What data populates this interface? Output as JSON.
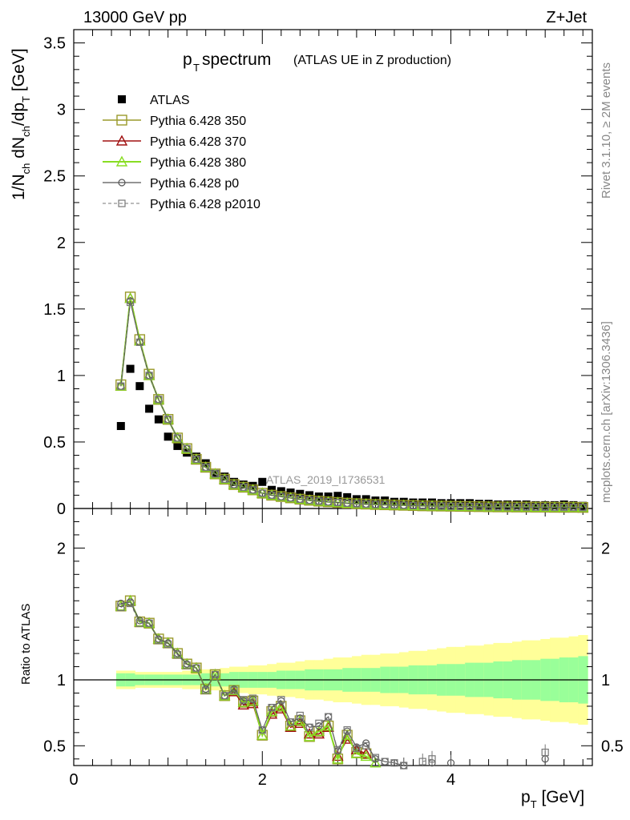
{
  "header": {
    "left": "13000 GeV pp",
    "right": "Z+Jet"
  },
  "side": {
    "rivet": "Rivet 3.1.10, ≥ 2M events",
    "mcplots": "mcplots.cern.ch [arXiv:1306.3436]"
  },
  "title": {
    "main": "p",
    "main_sub": "T",
    "main_rest": " spectrum",
    "paren": "(ATLAS UE in Z production)"
  },
  "watermark": "ATLAS_2019_I1736531",
  "colors": {
    "atlas": "#000000",
    "p350": "#9a9a2a",
    "p370": "#a01010",
    "p380": "#88dd22",
    "p0": "#555555",
    "p2010": "#777777",
    "band_inner": "#99ff99",
    "band_outer": "#ffff99"
  },
  "chart_data": [
    {
      "type": "scatter",
      "panel": "main",
      "xlabel": "p_T [GeV]",
      "ylabel": "1/N_ch dN_ch/dp_T [GeV]",
      "xlim": [
        0,
        5.5
      ],
      "ylim": [
        0,
        3.6
      ],
      "yticks": [
        "0",
        "0.5",
        "1",
        "1.5",
        "2",
        "2.5",
        "3",
        "3.5"
      ],
      "x": [
        0.5,
        0.6,
        0.7,
        0.8,
        0.9,
        1.0,
        1.1,
        1.2,
        1.3,
        1.4,
        1.5,
        1.6,
        1.7,
        1.8,
        1.9,
        2.0,
        2.1,
        2.2,
        2.3,
        2.4,
        2.5,
        2.6,
        2.7,
        2.8,
        2.9,
        3.0,
        3.1,
        3.2,
        3.3,
        3.4,
        3.5,
        3.6,
        3.7,
        3.8,
        3.9,
        4.0,
        4.1,
        4.2,
        4.3,
        4.4,
        4.5,
        4.6,
        4.7,
        4.8,
        4.9,
        5.0,
        5.1,
        5.2,
        5.3,
        5.4
      ],
      "series": [
        {
          "name": "ATLAS",
          "values": [
            0.62,
            1.05,
            0.92,
            0.75,
            0.67,
            0.54,
            0.47,
            0.42,
            0.39,
            0.34,
            0.26,
            0.24,
            0.2,
            0.18,
            0.17,
            0.2,
            0.14,
            0.13,
            0.12,
            0.11,
            0.1,
            0.09,
            0.09,
            0.095,
            0.085,
            0.07,
            0.07,
            0.06,
            0.06,
            0.05,
            0.05,
            0.045,
            0.045,
            0.045,
            0.04,
            0.04,
            0.04,
            0.04,
            0.035,
            0.035,
            0.03,
            0.03,
            0.03,
            0.03,
            0.025,
            0.025,
            0.025,
            0.03,
            0.025,
            0.02
          ]
        },
        {
          "name": "Pythia 6.428 350",
          "values": [
            0.93,
            1.59,
            1.27,
            1.01,
            0.82,
            0.67,
            0.53,
            0.45,
            0.37,
            0.31,
            0.26,
            0.22,
            0.18,
            0.16,
            0.14,
            0.115,
            0.1,
            0.09,
            0.08,
            0.07,
            0.062,
            0.055,
            0.05,
            0.045,
            0.04,
            0.036,
            0.033,
            0.03,
            0.028,
            0.026,
            0.024,
            0.022,
            0.02,
            0.019,
            0.018,
            0.017,
            0.016,
            0.015,
            0.014,
            0.013,
            0.012,
            0.012,
            0.011,
            0.011,
            0.01,
            0.01,
            0.009,
            0.009,
            0.009,
            0.008
          ]
        },
        {
          "name": "Pythia 6.428 370",
          "values": [
            0.92,
            1.58,
            1.26,
            1.0,
            0.82,
            0.67,
            0.53,
            0.45,
            0.37,
            0.31,
            0.26,
            0.22,
            0.18,
            0.16,
            0.14,
            0.115,
            0.1,
            0.09,
            0.08,
            0.07,
            0.062,
            0.055,
            0.05,
            0.045,
            0.04,
            0.036,
            0.033,
            0.03,
            0.028,
            0.026,
            0.024,
            0.022,
            0.02,
            0.019,
            0.018,
            0.017,
            0.016,
            0.015,
            0.014,
            0.013,
            0.012,
            0.012,
            0.011,
            0.011,
            0.01,
            0.01,
            0.009,
            0.009,
            0.009,
            0.008
          ]
        },
        {
          "name": "Pythia 6.428 380",
          "values": [
            0.92,
            1.58,
            1.26,
            1.0,
            0.82,
            0.67,
            0.53,
            0.45,
            0.37,
            0.31,
            0.26,
            0.22,
            0.18,
            0.16,
            0.14,
            0.115,
            0.1,
            0.09,
            0.08,
            0.07,
            0.062,
            0.055,
            0.05,
            0.045,
            0.04,
            0.036,
            0.033,
            0.03,
            0.028,
            0.026,
            0.024,
            0.022,
            0.02,
            0.019,
            0.018,
            0.017,
            0.016,
            0.015,
            0.014,
            0.013,
            0.012,
            0.012,
            0.011,
            0.011,
            0.01,
            0.01,
            0.009,
            0.009,
            0.009,
            0.008
          ]
        },
        {
          "name": "Pythia 6.428 p0",
          "values": [
            0.92,
            1.56,
            1.25,
            1.0,
            0.82,
            0.67,
            0.53,
            0.45,
            0.37,
            0.31,
            0.26,
            0.22,
            0.18,
            0.16,
            0.14,
            0.115,
            0.1,
            0.09,
            0.08,
            0.07,
            0.062,
            0.055,
            0.05,
            0.045,
            0.04,
            0.036,
            0.033,
            0.03,
            0.028,
            0.026,
            0.024,
            0.022,
            0.02,
            0.019,
            0.018,
            0.017,
            0.016,
            0.015,
            0.014,
            0.013,
            0.012,
            0.012,
            0.011,
            0.011,
            0.01,
            0.01,
            0.009,
            0.009,
            0.009,
            0.008
          ]
        },
        {
          "name": "Pythia 6.428 p2010",
          "values": [
            0.92,
            1.55,
            1.25,
            1.0,
            0.82,
            0.67,
            0.53,
            0.45,
            0.37,
            0.31,
            0.26,
            0.22,
            0.18,
            0.16,
            0.14,
            0.115,
            0.1,
            0.09,
            0.08,
            0.07,
            0.062,
            0.055,
            0.05,
            0.045,
            0.04,
            0.036,
            0.033,
            0.03,
            0.028,
            0.026,
            0.024,
            0.022,
            0.02,
            0.019,
            0.018,
            0.017,
            0.016,
            0.015,
            0.014,
            0.013,
            0.012,
            0.012,
            0.011,
            0.011,
            0.01,
            0.01,
            0.009,
            0.009,
            0.009,
            0.008
          ]
        }
      ]
    },
    {
      "type": "line",
      "panel": "ratio",
      "ylabel": "Ratio to ATLAS",
      "xlabel": "p_T [GeV]",
      "xlim": [
        0,
        5.5
      ],
      "ylim": [
        0.35,
        2.3
      ],
      "yticks": [
        "0.5",
        "1",
        "2"
      ],
      "xticks": [
        "0",
        "2",
        "4"
      ],
      "x": [
        0.5,
        0.6,
        0.7,
        0.8,
        0.9,
        1.0,
        1.1,
        1.2,
        1.3,
        1.4,
        1.5,
        1.6,
        1.7,
        1.8,
        1.9,
        2.0,
        2.1,
        2.2,
        2.3,
        2.4,
        2.5,
        2.6,
        2.7,
        2.8,
        2.9,
        3.0,
        3.1,
        3.2,
        3.3,
        3.4,
        3.5,
        3.6,
        3.7,
        3.8,
        3.9,
        4.0,
        4.1,
        4.2,
        4.3,
        4.4,
        4.5,
        4.6,
        4.7,
        4.8,
        4.9,
        5.0,
        5.1,
        5.2,
        5.3,
        5.4
      ],
      "band_inner": [
        0.05,
        0.05,
        0.04,
        0.04,
        0.04,
        0.04,
        0.04,
        0.04,
        0.04,
        0.05,
        0.05,
        0.05,
        0.06,
        0.06,
        0.06,
        0.06,
        0.06,
        0.07,
        0.07,
        0.07,
        0.08,
        0.08,
        0.08,
        0.08,
        0.09,
        0.09,
        0.09,
        0.09,
        0.1,
        0.1,
        0.1,
        0.11,
        0.11,
        0.11,
        0.12,
        0.12,
        0.12,
        0.13,
        0.13,
        0.13,
        0.14,
        0.14,
        0.15,
        0.15,
        0.15,
        0.16,
        0.16,
        0.17,
        0.17,
        0.18
      ],
      "band_outer": [
        0.07,
        0.07,
        0.06,
        0.06,
        0.06,
        0.06,
        0.06,
        0.07,
        0.07,
        0.08,
        0.08,
        0.09,
        0.1,
        0.1,
        0.11,
        0.11,
        0.12,
        0.13,
        0.13,
        0.14,
        0.15,
        0.15,
        0.16,
        0.17,
        0.17,
        0.18,
        0.19,
        0.19,
        0.2,
        0.2,
        0.21,
        0.22,
        0.22,
        0.23,
        0.24,
        0.25,
        0.25,
        0.26,
        0.26,
        0.27,
        0.28,
        0.28,
        0.29,
        0.3,
        0.3,
        0.31,
        0.32,
        0.32,
        0.33,
        0.34
      ],
      "series": [
        {
          "name": "Pythia 6.428 350",
          "values": [
            1.56,
            1.6,
            1.44,
            1.43,
            1.31,
            1.28,
            1.2,
            1.12,
            1.09,
            0.93,
            1.04,
            0.88,
            0.92,
            0.83,
            0.84,
            0.58,
            0.76,
            0.8,
            0.65,
            0.69,
            0.57,
            0.61,
            0.65,
            0.4,
            0.58,
            0.45,
            0.44,
            null,
            null,
            null,
            null,
            null,
            null,
            null,
            null,
            null,
            null,
            null,
            null,
            null,
            null,
            null,
            null,
            null,
            null,
            null,
            null,
            null,
            null,
            null
          ]
        },
        {
          "name": "Pythia 6.428 370",
          "values": [
            1.56,
            1.6,
            1.44,
            1.43,
            1.31,
            1.28,
            1.2,
            1.12,
            1.09,
            0.93,
            1.04,
            0.88,
            0.91,
            0.81,
            0.82,
            0.58,
            0.74,
            0.78,
            0.64,
            0.67,
            0.59,
            0.59,
            0.64,
            0.42,
            0.55,
            0.47,
            0.44,
            0.33,
            null,
            null,
            null,
            null,
            null,
            null,
            null,
            null,
            null,
            null,
            null,
            null,
            null,
            null,
            null,
            null,
            null,
            null,
            null,
            null,
            null,
            null
          ]
        },
        {
          "name": "Pythia 6.428 380",
          "values": [
            1.56,
            1.6,
            1.44,
            1.43,
            1.31,
            1.28,
            1.2,
            1.12,
            1.09,
            0.93,
            1.04,
            0.88,
            0.92,
            0.83,
            0.84,
            0.58,
            0.76,
            0.8,
            0.65,
            0.69,
            0.57,
            0.61,
            0.65,
            0.4,
            0.58,
            0.44,
            0.42,
            0.37,
            0.33,
            null,
            null,
            null,
            null,
            null,
            null,
            null,
            null,
            null,
            null,
            null,
            null,
            null,
            null,
            null,
            null,
            null,
            null,
            null,
            null,
            null
          ]
        },
        {
          "name": "Pythia 6.428 p0",
          "values": [
            1.58,
            1.59,
            1.45,
            1.43,
            1.31,
            1.28,
            1.2,
            1.12,
            1.09,
            0.93,
            1.04,
            0.88,
            0.93,
            0.84,
            0.85,
            0.62,
            0.79,
            0.84,
            0.68,
            0.71,
            0.64,
            0.65,
            0.72,
            0.46,
            0.61,
            0.49,
            0.52,
            0.4,
            0.38,
            0.37,
            0.35,
            null,
            null,
            0.37,
            null,
            0.37,
            null,
            null,
            0.34,
            null,
            null,
            0.34,
            null,
            null,
            null,
            0.4,
            null,
            null,
            null,
            null
          ]
        },
        {
          "name": "Pythia 6.428 p2010",
          "values": [
            1.55,
            1.58,
            1.43,
            1.43,
            1.3,
            1.27,
            1.19,
            1.11,
            1.09,
            0.92,
            1.04,
            0.88,
            0.92,
            0.85,
            0.86,
            0.62,
            0.79,
            0.85,
            0.68,
            0.73,
            0.64,
            0.67,
            0.72,
            0.47,
            0.62,
            0.48,
            0.5,
            0.41,
            0.38,
            0.37,
            0.35,
            null,
            0.38,
            0.4,
            null,
            null,
            null,
            null,
            null,
            null,
            null,
            null,
            null,
            null,
            null,
            0.45,
            null,
            null,
            null,
            null
          ]
        }
      ]
    }
  ]
}
